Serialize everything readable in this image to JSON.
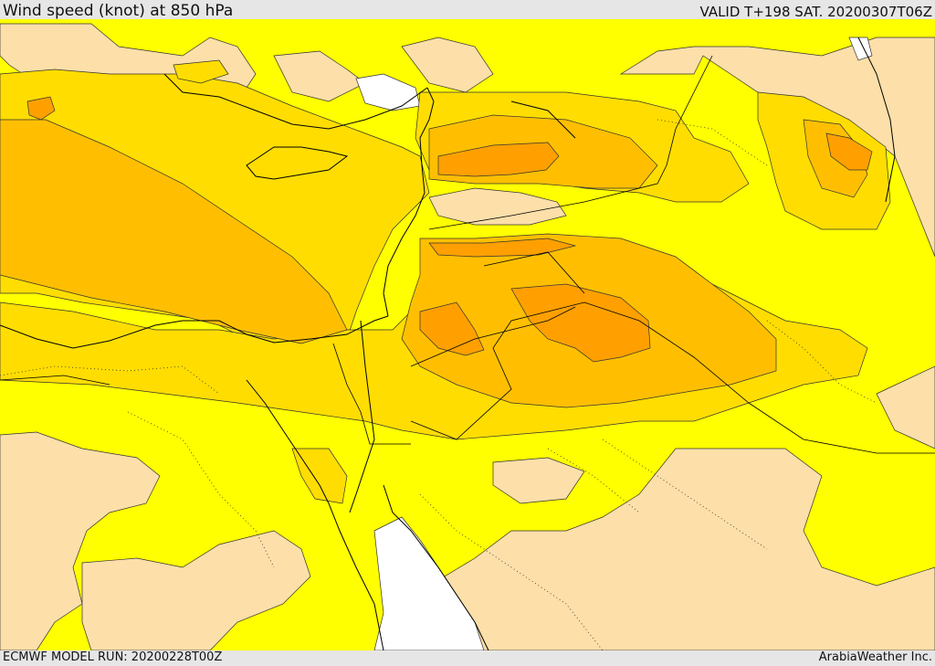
{
  "header": {
    "title": "Wind speed (knot) at 850 hPa",
    "valid_time": "VALID T+198 SAT. 20200307T06Z"
  },
  "footer": {
    "model_run": "ECMWF MODEL RUN: 20200228T00Z",
    "credit": "ArabiaWeather Inc."
  },
  "map": {
    "variable": "Wind speed",
    "unit": "knot",
    "level": "850 hPa",
    "legend": "none",
    "colors": {
      "calm": "#ffffff",
      "light": "#fddfa9",
      "moderate": "#ffff00",
      "fresh": "#ffdd00",
      "strong": "#ffbf00",
      "very_strong": "#ffa000",
      "coastline": "#000000"
    }
  }
}
